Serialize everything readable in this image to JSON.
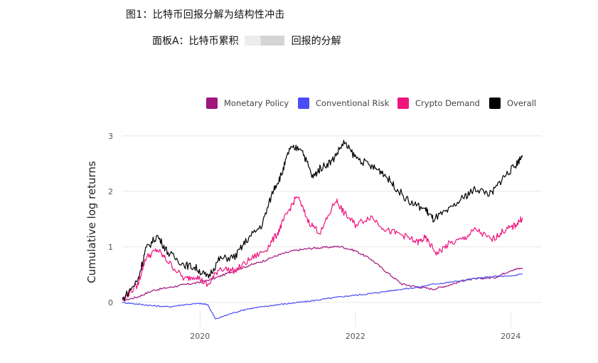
{
  "figure": {
    "title": "图1：比特币回报分解为结构性冲击",
    "panel_title_left": "面板A：比特币累积",
    "panel_title_right": "回报的分解"
  },
  "chart_data": {
    "type": "line",
    "ylabel": "Cumulative log returns",
    "xlabel": "",
    "xticks": [
      "2020",
      "2022",
      "2024"
    ],
    "yticks": [
      "0",
      "1",
      "2",
      "3"
    ],
    "xlim": [
      2019.0,
      2024.4
    ],
    "ylim": [
      -0.45,
      3.05
    ],
    "grid": "horizontal-and-vertical",
    "legend_position": "top-right",
    "series": [
      {
        "name": "Monetary Policy",
        "color": "#a0147e",
        "x": [
          2019.0,
          2019.2,
          2019.4,
          2019.6,
          2019.8,
          2020.0,
          2020.2,
          2020.4,
          2020.6,
          2020.8,
          2021.0,
          2021.2,
          2021.4,
          2021.6,
          2021.8,
          2022.0,
          2022.2,
          2022.4,
          2022.6,
          2022.8,
          2023.0,
          2023.2,
          2023.4,
          2023.6,
          2023.8,
          2024.0,
          2024.15
        ],
        "y": [
          0.03,
          0.1,
          0.22,
          0.27,
          0.32,
          0.36,
          0.44,
          0.55,
          0.65,
          0.74,
          0.85,
          0.93,
          0.97,
          0.99,
          1.01,
          0.93,
          0.78,
          0.55,
          0.33,
          0.28,
          0.24,
          0.31,
          0.4,
          0.43,
          0.45,
          0.58,
          0.62
        ]
      },
      {
        "name": "Conventional Risk",
        "color": "#4a4cf5",
        "x": [
          2019.0,
          2019.2,
          2019.4,
          2019.6,
          2019.8,
          2020.0,
          2020.1,
          2020.2,
          2020.4,
          2020.6,
          2020.8,
          2021.0,
          2021.2,
          2021.4,
          2021.6,
          2021.8,
          2022.0,
          2022.2,
          2022.4,
          2022.6,
          2022.8,
          2023.0,
          2023.2,
          2023.4,
          2023.6,
          2023.8,
          2024.0,
          2024.15
        ],
        "y": [
          0.0,
          -0.03,
          -0.06,
          -0.08,
          -0.04,
          -0.02,
          -0.04,
          -0.3,
          -0.2,
          -0.12,
          -0.08,
          -0.04,
          -0.01,
          0.02,
          0.06,
          0.1,
          0.13,
          0.16,
          0.2,
          0.24,
          0.27,
          0.33,
          0.36,
          0.4,
          0.44,
          0.47,
          0.47,
          0.52
        ]
      },
      {
        "name": "Crypto Demand",
        "color": "#f0147e",
        "x": [
          2019.0,
          2019.2,
          2019.3,
          2019.45,
          2019.6,
          2019.8,
          2019.95,
          2020.1,
          2020.25,
          2020.45,
          2020.65,
          2020.85,
          2021.0,
          2021.1,
          2021.25,
          2021.4,
          2021.55,
          2021.75,
          2021.85,
          2022.0,
          2022.2,
          2022.4,
          2022.6,
          2022.8,
          2022.9,
          2023.05,
          2023.2,
          2023.4,
          2023.55,
          2023.75,
          2023.9,
          2024.05,
          2024.15
        ],
        "y": [
          0.05,
          0.32,
          0.8,
          0.95,
          0.72,
          0.42,
          0.48,
          0.3,
          0.62,
          0.57,
          0.78,
          0.95,
          1.25,
          1.55,
          1.92,
          1.45,
          1.25,
          1.85,
          1.62,
          1.4,
          1.55,
          1.3,
          1.22,
          1.08,
          1.16,
          0.88,
          1.05,
          1.15,
          1.32,
          1.12,
          1.28,
          1.38,
          1.52
        ]
      },
      {
        "name": "Overall",
        "color": "#000000",
        "x": [
          2019.0,
          2019.2,
          2019.3,
          2019.45,
          2019.6,
          2019.8,
          2019.95,
          2020.1,
          2020.25,
          2020.45,
          2020.6,
          2020.8,
          2020.95,
          2021.05,
          2021.15,
          2021.3,
          2021.45,
          2021.55,
          2021.7,
          2021.85,
          2022.0,
          2022.2,
          2022.35,
          2022.5,
          2022.7,
          2022.9,
          2023.0,
          2023.2,
          2023.4,
          2023.55,
          2023.75,
          2023.9,
          2024.05,
          2024.15
        ],
        "y": [
          0.05,
          0.4,
          0.95,
          1.2,
          0.88,
          0.68,
          0.62,
          0.45,
          0.78,
          0.82,
          1.12,
          1.4,
          2.05,
          2.3,
          2.75,
          2.8,
          2.25,
          2.42,
          2.55,
          2.88,
          2.62,
          2.45,
          2.35,
          2.1,
          1.8,
          1.68,
          1.5,
          1.65,
          1.9,
          2.05,
          1.95,
          2.25,
          2.45,
          2.65
        ]
      }
    ]
  }
}
